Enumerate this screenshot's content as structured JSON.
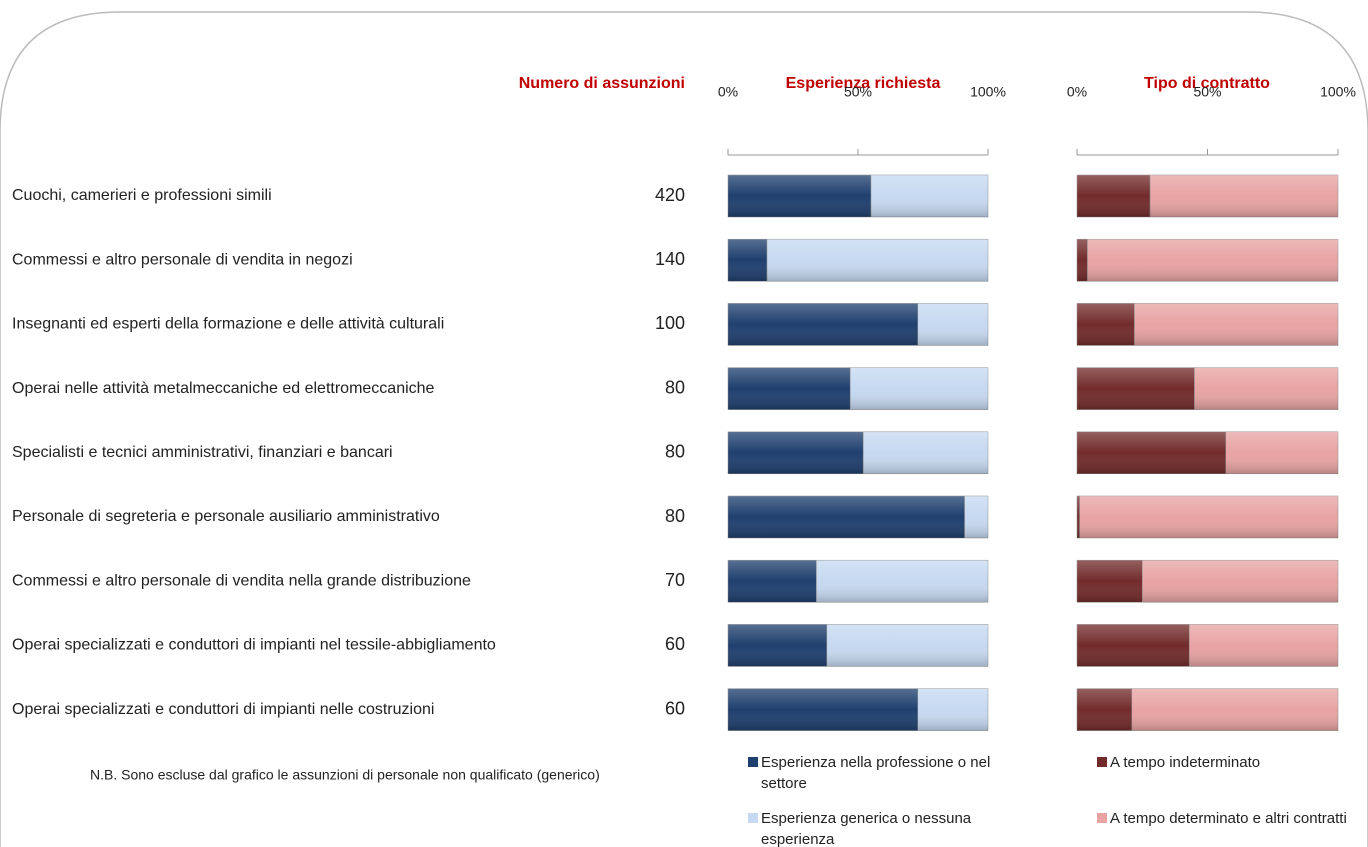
{
  "rows": {
    "title": "Numero di assunzioni",
    "categories": [
      "Cuochi, camerieri e professioni simili",
      "Commessi e altro personale di vendita in negozi",
      "Insegnanti ed esperti della formazione e delle attività culturali",
      "Operai nelle attività metalmeccaniche ed elettromeccaniche",
      "Specialisti e tecnici amministrativi, finanziari e bancari",
      "Personale di segreteria e personale ausiliario amministrativo",
      "Commessi e altro personale di vendita nella grande distribuzione",
      "Operai specializzati e conduttori di impianti nel tessile-abbigliamento",
      "Operai specializzati e conduttori di impianti nelle costruzioni"
    ],
    "counts": [
      420,
      140,
      100,
      80,
      80,
      80,
      70,
      60,
      60
    ]
  },
  "chart_data": [
    {
      "type": "stacked-bar",
      "title": "Esperienza richiesta",
      "xlim": [
        0,
        100
      ],
      "xticks": [
        {
          "value": 0,
          "label": "0%"
        },
        {
          "value": 50,
          "label": "50%"
        },
        {
          "value": 100,
          "label": "100%"
        }
      ],
      "series": [
        {
          "name": "Esperienza nella professione o nel settore",
          "color": "#1f3f6e",
          "values": [
            55,
            15,
            73,
            47,
            52,
            91,
            34,
            38,
            73
          ]
        },
        {
          "name": "Esperienza generica o nessuna esperienza",
          "color": "#c6d9f1",
          "values": [
            45,
            85,
            27,
            53,
            48,
            9,
            66,
            62,
            27
          ]
        }
      ]
    },
    {
      "type": "stacked-bar",
      "title": "Tipo di contratto",
      "xlim": [
        0,
        100
      ],
      "xticks": [
        {
          "value": 0,
          "label": "0%"
        },
        {
          "value": 50,
          "label": "50%"
        },
        {
          "value": 100,
          "label": "100%"
        }
      ],
      "series": [
        {
          "name": "A tempo indeterminato",
          "color": "#722b2b",
          "values": [
            28,
            4,
            22,
            45,
            57,
            1,
            25,
            43,
            21
          ]
        },
        {
          "name": "A tempo determinato e altri contratti",
          "color": "#e8a3a3",
          "values": [
            72,
            96,
            78,
            55,
            43,
            99,
            75,
            57,
            79
          ]
        }
      ]
    }
  ],
  "note": "N.B. Sono escluse dal grafico le assunzioni di personale non qualificato (generico)"
}
